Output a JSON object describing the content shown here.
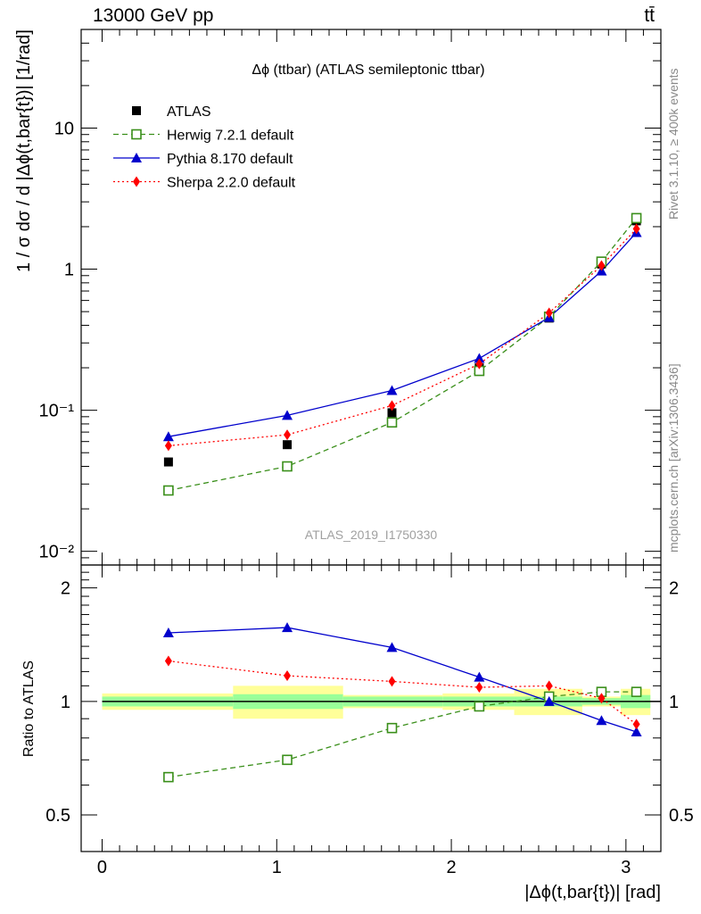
{
  "header": {
    "process": "13000 GeV pp",
    "final_state": "tt̄"
  },
  "side_labels": {
    "rivet": "Rivet 3.1.10, ≥ 400k events",
    "mcplots": "mcplots.cern.ch [arXiv:1306.3436]"
  },
  "chart_data": {
    "type": "line",
    "title": "Δϕ (ttbar) (ATLAS semileptonic ttbar)",
    "analysis": "ATLAS_2019_I1750330",
    "xlabel": "|Δϕ(t,bar{t})| [rad]",
    "ylabel": "1 / σ dσ / d |Δϕ(t,bar{t})| [1/rad]",
    "ratio_ylabel": "Ratio to ATLAS",
    "xlim": [
      -0.12,
      3.2
    ],
    "ylim": [
      0.008,
      50
    ],
    "yscale": "log",
    "ratio_ylim": [
      0.4,
      2.3
    ],
    "x_ticks": [
      "0",
      "1",
      "2",
      "3"
    ],
    "y_ticks": [
      "10⁻²",
      "10⁻¹",
      "1",
      "10"
    ],
    "ratio_ticks": [
      "0.5",
      "1",
      "2"
    ],
    "legend_position": "top-left",
    "x": [
      0.38,
      1.06,
      1.66,
      2.16,
      2.56,
      2.86,
      3.06
    ],
    "bins": [
      [
        0,
        0.75
      ],
      [
        0.75,
        1.38
      ],
      [
        1.38,
        1.95
      ],
      [
        1.95,
        2.36
      ],
      [
        2.36,
        2.75
      ],
      [
        2.75,
        2.97
      ],
      [
        2.97,
        3.14
      ]
    ],
    "band_inner": [
      0.03,
      0.045,
      0.03,
      0.03,
      0.03,
      0.02,
      0.04
    ],
    "band_outer": [
      0.05,
      0.1,
      0.04,
      0.05,
      0.08,
      0.03,
      0.08
    ],
    "series": [
      {
        "name": "ATLAS",
        "marker": "filled-square",
        "color": "#000000",
        "dash": "none",
        "line": false,
        "values": [
          0.043,
          0.057,
          0.096,
          0.2,
          0.45,
          1.09,
          2.2
        ],
        "ratio": [
          1,
          1,
          1,
          1,
          1,
          1,
          1
        ]
      },
      {
        "name": "Herwig 7.2.1 default",
        "marker": "open-square",
        "color": "#3a8f1a",
        "dash": "6,4",
        "line": true,
        "values": [
          0.027,
          0.04,
          0.082,
          0.19,
          0.46,
          1.13,
          2.3
        ],
        "ratio": [
          0.63,
          0.7,
          0.85,
          0.97,
          1.03,
          1.06,
          1.06
        ]
      },
      {
        "name": "Pythia 8.170 default",
        "marker": "filled-triangle",
        "color": "#0000cc",
        "dash": "none",
        "line": true,
        "values": [
          0.065,
          0.092,
          0.138,
          0.233,
          0.455,
          0.97,
          1.82
        ],
        "ratio": [
          1.52,
          1.57,
          1.39,
          1.16,
          1.0,
          0.89,
          0.83
        ]
      },
      {
        "name": "Sherpa 2.2.0 default",
        "marker": "filled-diamond",
        "color": "#ff0000",
        "dash": "2,3",
        "line": true,
        "values": [
          0.056,
          0.067,
          0.108,
          0.213,
          0.49,
          1.06,
          1.93
        ],
        "ratio": [
          1.28,
          1.17,
          1.13,
          1.09,
          1.1,
          1.02,
          0.87
        ]
      }
    ]
  }
}
